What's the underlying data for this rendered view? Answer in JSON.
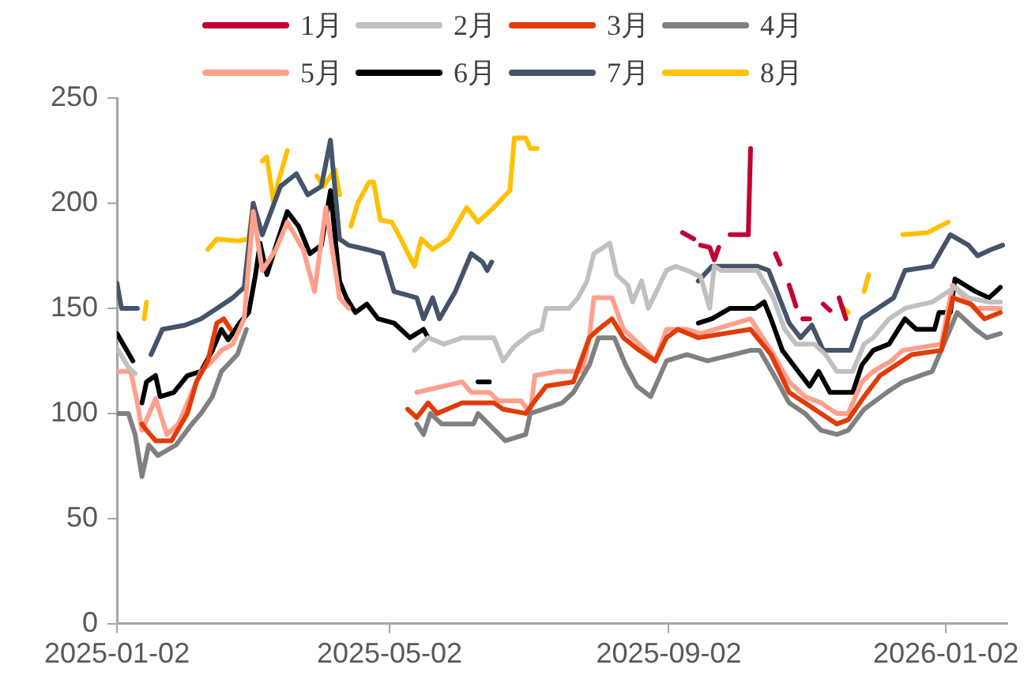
{
  "chart_data": {
    "type": "line",
    "legend": "top",
    "grid": false,
    "xlim": [
      "2025-01-02",
      "2026-01-29"
    ],
    "xticks": [
      "2025-01-02",
      "2025-05-02",
      "2025-09-02",
      "2026-01-02"
    ],
    "ylim": [
      0,
      250
    ],
    "yticks": [
      0,
      50,
      100,
      150,
      200,
      250
    ],
    "series": [
      {
        "name": "1月",
        "color": "#c00033",
        "x": [
          "2025-09-08",
          "2025-09-13",
          "2025-09-15",
          "2025-09-16",
          "2025-09-20",
          "2025-09-22",
          "2025-09-24",
          "2025-09-27",
          "2025-09-29",
          "2025-10-07",
          "2025-10-08",
          "2025-10-12",
          "2025-10-19",
          "2025-10-21",
          "2025-10-23",
          "2025-10-25",
          "2025-10-28",
          "2025-10-29",
          "2025-10-31",
          "2025-11-03",
          "2025-11-06",
          "2025-11-09",
          "2025-11-12",
          "2025-11-13",
          "2025-11-16",
          "2025-11-19"
        ],
        "values": [
          186,
          183,
          null,
          180,
          179,
          173,
          179,
          null,
          185,
          185,
          226,
          null,
          176,
          171,
          null,
          161,
          151,
          null,
          145,
          145,
          null,
          152,
          149,
          null,
          155,
          145
        ]
      },
      {
        "name": "2月",
        "color": "#c0c0c0",
        "x": [
          "2025-01-02",
          "2025-01-07",
          "2025-01-10",
          "2025-03-01",
          "2025-05-13",
          "2025-05-19",
          "2025-05-26",
          "2025-06-03",
          "2025-06-17",
          "2025-06-21",
          "2025-06-26",
          "2025-07-03",
          "2025-07-08",
          "2025-07-10",
          "2025-07-20",
          "2025-07-24",
          "2025-07-28",
          "2025-07-31",
          "2025-08-07",
          "2025-08-10",
          "2025-08-15",
          "2025-08-17",
          "2025-08-21",
          "2025-08-24",
          "2025-09-01",
          "2025-09-05",
          "2025-09-10",
          "2025-09-16",
          "2025-09-20",
          "2025-09-22",
          "2025-09-25",
          "2025-10-11",
          "2025-10-18",
          "2025-10-23",
          "2025-10-28",
          "2025-11-05",
          "2025-11-10",
          "2025-11-15",
          "2025-11-22",
          "2025-11-27",
          "2025-12-01",
          "2025-12-08",
          "2025-12-15",
          "2025-12-27",
          "2026-01-06",
          "2026-01-12",
          "2026-01-21",
          "2026-01-26"
        ],
        "values": [
          131,
          122,
          119,
          null,
          130,
          136,
          133,
          136,
          136,
          125,
          132,
          138,
          140,
          150,
          150,
          155,
          163,
          176,
          181,
          166,
          161,
          153,
          163,
          150,
          168,
          170,
          168,
          165,
          150,
          170,
          168,
          168,
          155,
          140,
          133,
          133,
          128,
          120,
          120,
          133,
          136,
          145,
          150,
          153,
          160,
          155,
          153,
          153
        ]
      },
      {
        "name": "3月",
        "color": "#e03c0a",
        "x": [
          "2025-01-13",
          "2025-01-15",
          "2025-01-19",
          "2025-01-26",
          "2025-02-02",
          "2025-02-06",
          "2025-02-11",
          "2025-02-15",
          "2025-02-18",
          "2025-02-21",
          "2025-04-01",
          "2025-05-10",
          "2025-05-14",
          "2025-05-19",
          "2025-05-23",
          "2025-06-03",
          "2025-06-17",
          "2025-06-21",
          "2025-07-01",
          "2025-07-05",
          "2025-07-10",
          "2025-07-22",
          "2025-07-29",
          "2025-08-02",
          "2025-08-08",
          "2025-08-13",
          "2025-08-20",
          "2025-08-27",
          "2025-09-01",
          "2025-09-06",
          "2025-09-15",
          "2025-10-08",
          "2025-10-17",
          "2025-10-25",
          "2025-11-01",
          "2025-11-08",
          "2025-11-15",
          "2025-11-20",
          "2025-11-27",
          "2025-12-04",
          "2025-12-11",
          "2025-12-18",
          "2025-12-31",
          "2026-01-05",
          "2026-01-13",
          "2026-01-19",
          "2026-01-26"
        ],
        "values": [
          95,
          92,
          87,
          87,
          100,
          115,
          125,
          143,
          145,
          140,
          null,
          102,
          98,
          105,
          100,
          105,
          105,
          102,
          100,
          106,
          113,
          115,
          136,
          140,
          145,
          136,
          130,
          125,
          136,
          140,
          136,
          140,
          128,
          110,
          105,
          100,
          95,
          97,
          108,
          118,
          123,
          128,
          130,
          155,
          152,
          145,
          148
        ]
      },
      {
        "name": "4月",
        "color": "#808080",
        "x": [
          "2025-01-02",
          "2025-01-07",
          "2025-01-10",
          "2025-01-13",
          "2025-01-16",
          "2025-01-20",
          "2025-01-28",
          "2025-02-04",
          "2025-02-08",
          "2025-02-13",
          "2025-02-17",
          "2025-02-24",
          "2025-02-28",
          "2025-04-01",
          "2025-05-14",
          "2025-05-17",
          "2025-05-20",
          "2025-05-25",
          "2025-06-08",
          "2025-06-10",
          "2025-06-22",
          "2025-07-01",
          "2025-07-03",
          "2025-07-17",
          "2025-07-22",
          "2025-07-29",
          "2025-08-02",
          "2025-08-09",
          "2025-08-14",
          "2025-08-19",
          "2025-08-25",
          "2025-09-01",
          "2025-09-10",
          "2025-09-19",
          "2025-10-08",
          "2025-10-12",
          "2025-10-20",
          "2025-10-25",
          "2025-11-01",
          "2025-11-08",
          "2025-11-15",
          "2025-11-20",
          "2025-11-27",
          "2025-12-07",
          "2025-12-14",
          "2025-12-27",
          "2026-01-07",
          "2026-01-15",
          "2026-01-20",
          "2026-01-26"
        ],
        "values": [
          100,
          100,
          90,
          70,
          85,
          80,
          85,
          95,
          100,
          108,
          120,
          128,
          140,
          null,
          95,
          90,
          100,
          95,
          95,
          100,
          87,
          90,
          100,
          105,
          110,
          123,
          136,
          136,
          123,
          113,
          108,
          125,
          128,
          125,
          130,
          130,
          115,
          105,
          100,
          92,
          90,
          92,
          102,
          110,
          115,
          120,
          148,
          140,
          136,
          138
        ]
      },
      {
        "name": "5月",
        "color": "#ffa08c",
        "x": [
          "2025-01-02",
          "2025-01-08",
          "2025-01-11",
          "2025-01-13",
          "2025-01-19",
          "2025-01-24",
          "2025-01-29",
          "2025-02-04",
          "2025-02-08",
          "2025-02-13",
          "2025-02-17",
          "2025-02-22",
          "2025-02-27",
          "2025-03-03",
          "2025-03-07",
          "2025-03-13",
          "2025-03-18",
          "2025-03-25",
          "2025-03-30",
          "2025-04-04",
          "2025-04-10",
          "2025-04-14",
          "2025-05-01",
          "2025-05-14",
          "2025-06-03",
          "2025-06-07",
          "2025-06-15",
          "2025-06-19",
          "2025-06-29",
          "2025-07-03",
          "2025-07-05",
          "2025-07-15",
          "2025-07-26",
          "2025-07-29",
          "2025-07-31",
          "2025-08-08",
          "2025-08-13",
          "2025-08-20",
          "2025-08-27",
          "2025-09-01",
          "2025-09-10",
          "2025-09-16",
          "2025-10-08",
          "2025-10-17",
          "2025-10-25",
          "2025-11-01",
          "2025-11-08",
          "2025-11-15",
          "2025-11-20",
          "2025-11-26",
          "2025-12-01",
          "2025-12-09",
          "2025-12-14",
          "2025-12-31",
          "2026-01-05",
          "2026-01-15",
          "2026-01-26"
        ],
        "values": [
          120,
          120,
          105,
          92,
          107,
          90,
          95,
          110,
          120,
          125,
          130,
          133,
          145,
          196,
          168,
          178,
          191,
          178,
          158,
          198,
          155,
          150,
          null,
          110,
          115,
          110,
          110,
          106,
          106,
          100,
          118,
          120,
          120,
          136,
          155,
          155,
          140,
          133,
          125,
          140,
          140,
          138,
          145,
          130,
          115,
          108,
          105,
          100,
          100,
          115,
          120,
          125,
          130,
          133,
          161,
          150,
          150
        ]
      },
      {
        "name": "6月",
        "color": "#000000",
        "x": [
          "2025-01-02",
          "2025-01-09",
          "2025-01-11",
          "2025-01-13",
          "2025-01-15",
          "2025-01-19",
          "2025-01-21",
          "2025-01-27",
          "2025-02-02",
          "2025-02-08",
          "2025-02-13",
          "2025-02-17",
          "2025-02-20",
          "2025-02-25",
          "2025-03-01",
          "2025-03-04",
          "2025-03-06",
          "2025-03-09",
          "2025-03-14",
          "2025-03-18",
          "2025-03-23",
          "2025-03-28",
          "2025-04-02",
          "2025-04-06",
          "2025-04-10",
          "2025-04-13",
          "2025-04-17",
          "2025-04-22",
          "2025-04-27",
          "2025-05-04",
          "2025-05-11",
          "2025-05-17",
          "2025-05-19",
          "2025-05-30",
          "2025-06-10",
          "2025-06-15",
          "2025-08-01",
          "2025-09-15",
          "2025-09-21",
          "2025-09-29",
          "2025-10-10",
          "2025-10-14",
          "2025-10-17",
          "2025-10-22",
          "2025-10-29",
          "2025-11-03",
          "2025-11-07",
          "2025-11-12",
          "2025-11-22",
          "2025-11-26",
          "2025-12-01",
          "2025-12-08",
          "2025-12-15",
          "2025-12-20",
          "2025-12-28",
          "2025-12-30",
          "2026-01-04",
          "2026-01-06",
          "2026-01-15",
          "2026-01-21",
          "2026-01-26"
        ],
        "values": [
          138,
          125,
          null,
          105,
          115,
          118,
          108,
          110,
          118,
          120,
          130,
          140,
          135,
          143,
          148,
          166,
          181,
          166,
          183,
          196,
          189,
          176,
          180,
          206,
          163,
          155,
          148,
          152,
          145,
          143,
          136,
          140,
          136,
          null,
          115,
          115,
          null,
          143,
          145,
          150,
          150,
          153,
          145,
          130,
          120,
          113,
          120,
          110,
          110,
          123,
          130,
          133,
          145,
          140,
          140,
          148,
          148,
          164,
          158,
          155,
          160
        ]
      },
      {
        "name": "7月",
        "color": "#44546a",
        "x": [
          "2025-01-02",
          "2025-01-04",
          "2025-01-11",
          "2025-01-14",
          "2025-01-17",
          "2025-01-22",
          "2025-02-01",
          "2025-02-08",
          "2025-02-15",
          "2025-02-22",
          "2025-02-27",
          "2025-03-03",
          "2025-03-07",
          "2025-03-15",
          "2025-03-22",
          "2025-03-27",
          "2025-04-02",
          "2025-04-06",
          "2025-04-10",
          "2025-04-14",
          "2025-04-22",
          "2025-04-29",
          "2025-05-04",
          "2025-05-14",
          "2025-05-17",
          "2025-05-21",
          "2025-05-24",
          "2025-05-31",
          "2025-06-07",
          "2025-06-12",
          "2025-06-14",
          "2025-06-16",
          "2025-08-01",
          "2025-09-15",
          "2025-09-21",
          "2025-10-11",
          "2025-10-16",
          "2025-10-25",
          "2025-10-30",
          "2025-11-04",
          "2025-11-09",
          "2025-11-16",
          "2025-11-21",
          "2025-11-26",
          "2025-12-03",
          "2025-12-10",
          "2025-12-15",
          "2025-12-27",
          "2026-01-04",
          "2026-01-12",
          "2026-01-16",
          "2026-01-22",
          "2026-01-27"
        ],
        "values": [
          162,
          150,
          150,
          null,
          128,
          140,
          142,
          145,
          150,
          155,
          160,
          200,
          185,
          208,
          214,
          204,
          208,
          230,
          183,
          180,
          178,
          176,
          158,
          155,
          145,
          155,
          145,
          158,
          176,
          172,
          168,
          172,
          null,
          163,
          170,
          170,
          168,
          143,
          136,
          142,
          130,
          130,
          130,
          145,
          150,
          155,
          168,
          170,
          185,
          180,
          175,
          178,
          180
        ]
      },
      {
        "name": "8月",
        "color": "#ffc000",
        "x": [
          "2025-01-14",
          "2025-01-15",
          "2025-01-30",
          "2025-02-11",
          "2025-02-15",
          "2025-02-24",
          "2025-03-01",
          "2025-03-03",
          "2025-03-05",
          "2025-03-07",
          "2025-03-09",
          "2025-03-12",
          "2025-03-14",
          "2025-03-18",
          "2025-03-25",
          "2025-03-31",
          "2025-04-03",
          "2025-04-08",
          "2025-04-10",
          "2025-04-12",
          "2025-04-15",
          "2025-04-18",
          "2025-04-23",
          "2025-04-25",
          "2025-04-28",
          "2025-05-03",
          "2025-05-07",
          "2025-05-13",
          "2025-05-16",
          "2025-05-21",
          "2025-05-28",
          "2025-06-05",
          "2025-06-10",
          "2025-06-17",
          "2025-06-24",
          "2025-06-26",
          "2025-07-01",
          "2025-07-03",
          "2025-07-06",
          "2025-09-01",
          "2025-11-17",
          "2025-11-20",
          "2025-11-23",
          "2025-11-27",
          "2025-11-29",
          "2025-12-06",
          "2025-12-14",
          "2025-12-25",
          "2026-01-03"
        ],
        "values": [
          145,
          153,
          null,
          178,
          183,
          182,
          183,
          200,
          null,
          220,
          222,
          200,
          210,
          225,
          null,
          213,
          208,
          216,
          204,
          null,
          189,
          200,
          210,
          210,
          192,
          191,
          183,
          170,
          183,
          178,
          183,
          198,
          191,
          198,
          206,
          231,
          231,
          226,
          226,
          null,
          151,
          148,
          null,
          158,
          166,
          null,
          185,
          186,
          191
        ]
      }
    ]
  }
}
